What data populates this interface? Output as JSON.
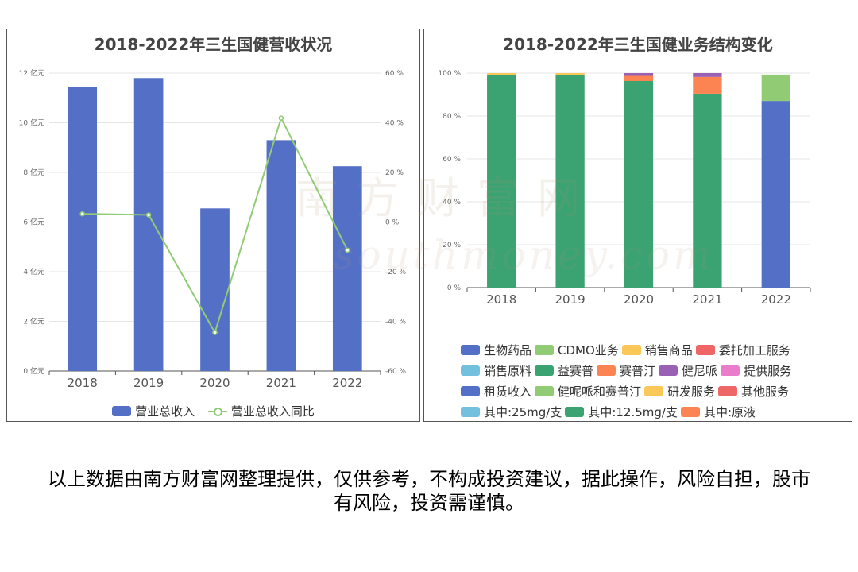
{
  "watermark": {
    "cn": "南方财富网",
    "en": "southmoney.com"
  },
  "disclaimer": "以上数据由南方财富网整理提供，仅供参考，不构成投资建议，据此操作，风险自担，股市有风险，投资需谨慎。",
  "chart_data": [
    {
      "type": "bar",
      "title": "2018-2022年三生国健营收状况",
      "categories": [
        "2018",
        "2019",
        "2020",
        "2021",
        "2022"
      ],
      "series": [
        {
          "name": "营业总收入",
          "type": "bar",
          "axis": "left",
          "values": [
            11.45,
            11.8,
            6.55,
            9.3,
            8.25
          ],
          "color": "#5470c6"
        },
        {
          "name": "营业总收入同比",
          "type": "line",
          "axis": "right",
          "values": [
            3.3,
            2.9,
            -44.5,
            41.9,
            -11.3
          ],
          "color": "#91cc75"
        }
      ],
      "yleft": {
        "min": 0,
        "max": 12,
        "step": 2,
        "unit": "亿元",
        "ticks": [
          "0 亿元",
          "2 亿元",
          "4 亿元",
          "6 亿元",
          "8 亿元",
          "10 亿元",
          "12 亿元"
        ]
      },
      "yright": {
        "min": -60,
        "max": 60,
        "step": 20,
        "ticks": [
          "-60 %",
          "-40 %",
          "-20 %",
          "0 %",
          "20 %",
          "40 %",
          "60 %"
        ]
      },
      "legend_position": "bottom-center",
      "grid": true
    },
    {
      "type": "bar",
      "stacked": true,
      "title": "2018-2022年三生国健业务结构变化",
      "categories": [
        "2018",
        "2019",
        "2020",
        "2021",
        "2022"
      ],
      "ylim": [
        0,
        100
      ],
      "yticks": [
        "0 %",
        "20 %",
        "40 %",
        "60 %",
        "80 %",
        "100 %"
      ],
      "legend_position": "bottom",
      "legend": [
        {
          "name": "生物药品",
          "color": "#5470c6"
        },
        {
          "name": "CDMO业务",
          "color": "#91cc75"
        },
        {
          "name": "销售商品",
          "color": "#fac858"
        },
        {
          "name": "委托加工服务",
          "color": "#ee6666"
        },
        {
          "name": "销售原料",
          "color": "#73c0de"
        },
        {
          "name": "益赛普",
          "color": "#3ba272"
        },
        {
          "name": "赛普汀",
          "color": "#fc8452"
        },
        {
          "name": "健尼哌",
          "color": "#9a60b4"
        },
        {
          "name": "提供服务",
          "color": "#ea7ccc"
        },
        {
          "name": "租赁收入",
          "color": "#5470c6"
        },
        {
          "name": "健呢哌和赛普汀",
          "color": "#91cc75"
        },
        {
          "name": "研发服务",
          "color": "#fac858"
        },
        {
          "name": "其他服务",
          "color": "#ee6666"
        },
        {
          "name": "其中:25mg/支",
          "color": "#73c0de"
        },
        {
          "name": "其中:12.5mg/支",
          "color": "#3ba272"
        },
        {
          "name": "其中:原液",
          "color": "#fc8452"
        }
      ],
      "series": [
        {
          "name": "益赛普",
          "color": "#3ba272",
          "values": [
            99,
            99,
            96.3,
            90.4,
            0
          ]
        },
        {
          "name": "销售商品",
          "color": "#fac858",
          "values": [
            1,
            1,
            0,
            0,
            0
          ]
        },
        {
          "name": "赛普汀",
          "color": "#fc8452",
          "values": [
            0,
            0,
            2.4,
            7.8,
            0
          ]
        },
        {
          "name": "健尼哌",
          "color": "#9a60b4",
          "values": [
            0,
            0,
            1.3,
            1.8,
            0
          ]
        },
        {
          "name": "生物药品",
          "color": "#5470c6",
          "values": [
            0,
            0,
            0,
            0,
            87
          ]
        },
        {
          "name": "CDMO业务",
          "color": "#91cc75",
          "values": [
            0,
            0,
            0,
            0,
            12.3
          ]
        }
      ]
    }
  ]
}
